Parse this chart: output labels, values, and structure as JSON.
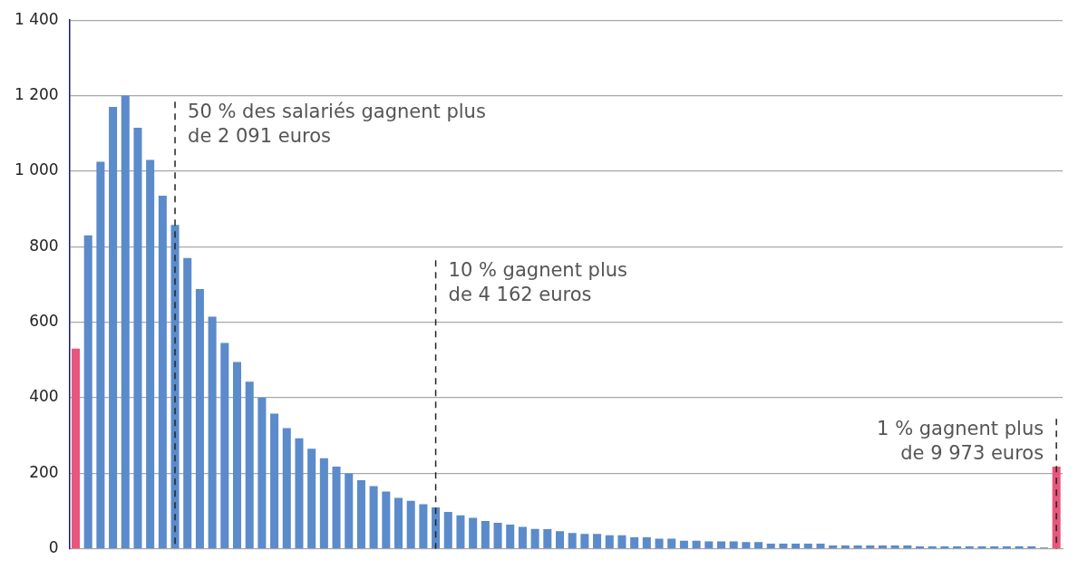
{
  "chart_data": {
    "type": "bar",
    "categories": [
      null,
      null,
      null,
      null,
      null,
      null,
      null,
      null,
      null,
      null,
      null,
      null,
      null,
      null,
      null,
      null,
      null,
      null,
      null,
      null,
      null,
      null,
      null,
      null,
      null,
      null,
      null,
      null,
      null,
      null,
      null,
      null,
      null,
      null,
      null,
      null,
      null,
      null,
      null,
      null,
      null,
      null,
      null,
      null,
      null,
      null,
      null,
      null,
      null,
      null,
      null,
      null,
      null,
      null,
      null,
      null,
      null,
      null,
      null,
      null,
      null,
      null,
      null,
      null,
      null,
      null,
      null,
      null,
      null,
      null,
      null,
      null,
      null,
      null,
      null,
      null,
      null,
      null,
      null,
      null
    ],
    "values": [
      530,
      830,
      1025,
      1170,
      1200,
      1115,
      1030,
      935,
      858,
      770,
      688,
      615,
      545,
      495,
      443,
      400,
      358,
      320,
      293,
      265,
      240,
      218,
      200,
      182,
      166,
      152,
      135,
      127,
      118,
      110,
      98,
      89,
      82,
      74,
      69,
      64,
      58,
      53,
      52,
      47,
      42,
      40,
      40,
      36,
      36,
      31,
      31,
      27,
      27,
      22,
      22,
      20,
      20,
      20,
      18,
      18,
      14,
      14,
      14,
      14,
      14,
      9,
      9,
      9,
      9,
      9,
      9,
      9,
      7,
      7,
      7,
      7,
      7,
      7,
      7,
      7,
      7,
      7,
      4,
      218
    ],
    "colors": [
      "#e8567d",
      "#5b8bcb",
      "#5b8bcb",
      "#5b8bcb",
      "#5b8bcb",
      "#5b8bcb",
      "#5b8bcb",
      "#5b8bcb",
      "#5b8bcb",
      "#5b8bcb",
      "#5b8bcb",
      "#5b8bcb",
      "#5b8bcb",
      "#5b8bcb",
      "#5b8bcb",
      "#5b8bcb",
      "#5b8bcb",
      "#5b8bcb",
      "#5b8bcb",
      "#5b8bcb",
      "#5b8bcb",
      "#5b8bcb",
      "#5b8bcb",
      "#5b8bcb",
      "#5b8bcb",
      "#5b8bcb",
      "#5b8bcb",
      "#5b8bcb",
      "#5b8bcb",
      "#5b8bcb",
      "#5b8bcb",
      "#5b8bcb",
      "#5b8bcb",
      "#5b8bcb",
      "#5b8bcb",
      "#5b8bcb",
      "#5b8bcb",
      "#5b8bcb",
      "#5b8bcb",
      "#5b8bcb",
      "#5b8bcb",
      "#5b8bcb",
      "#5b8bcb",
      "#5b8bcb",
      "#5b8bcb",
      "#5b8bcb",
      "#5b8bcb",
      "#5b8bcb",
      "#5b8bcb",
      "#5b8bcb",
      "#5b8bcb",
      "#5b8bcb",
      "#5b8bcb",
      "#5b8bcb",
      "#5b8bcb",
      "#5b8bcb",
      "#5b8bcb",
      "#5b8bcb",
      "#5b8bcb",
      "#5b8bcb",
      "#5b8bcb",
      "#5b8bcb",
      "#5b8bcb",
      "#5b8bcb",
      "#5b8bcb",
      "#5b8bcb",
      "#5b8bcb",
      "#5b8bcb",
      "#5b8bcb",
      "#5b8bcb",
      "#5b8bcb",
      "#5b8bcb",
      "#5b8bcb",
      "#5b8bcb",
      "#5b8bcb",
      "#5b8bcb",
      "#5b8bcb",
      "#5b8bcb",
      "#5b8bcb",
      "#e8567d"
    ],
    "ylim": [
      0,
      1400
    ],
    "yticks": [
      0,
      200,
      400,
      600,
      800,
      {
        "value": 1000,
        "label": "1 000"
      },
      {
        "value": 1200,
        "label": "1 200"
      },
      {
        "value": 1400,
        "label": "1 400"
      }
    ],
    "grid": "y",
    "tick_labels": "y",
    "annotations": [
      "50 % des salariés gagnent plus\nde 2 091 euros",
      "10 % gagnent plus\nde 4 162 euros",
      "1 % gagnent plus\nde 9 973 euros"
    ]
  }
}
